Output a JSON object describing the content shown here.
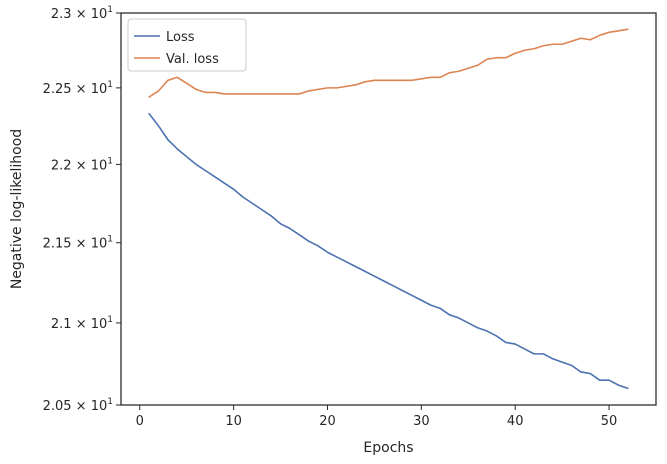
{
  "chart_data": {
    "type": "line",
    "xlabel": "Epochs",
    "ylabel": "Negative log-likelihood",
    "xlim": [
      -2,
      55
    ],
    "ylim": [
      20.5,
      23.0
    ],
    "yscale": "log",
    "grid": false,
    "legend_position": "top-left",
    "x_ticks": [
      0,
      10,
      20,
      30,
      40,
      50
    ],
    "x_tick_labels": [
      "0",
      "10",
      "20",
      "30",
      "40",
      "50"
    ],
    "y_ticks": [
      20.5,
      21.0,
      21.5,
      22.0,
      22.5,
      23.0
    ],
    "y_tick_mantissas": [
      "2.05",
      "2.1",
      "2.15",
      "2.2",
      "2.25",
      "2.3"
    ],
    "y_tick_times": "×",
    "y_tick_base": "10",
    "y_tick_exponent": "1",
    "x": [
      1,
      2,
      3,
      4,
      5,
      6,
      7,
      8,
      9,
      10,
      11,
      12,
      13,
      14,
      15,
      16,
      17,
      18,
      19,
      20,
      21,
      22,
      23,
      24,
      25,
      26,
      27,
      28,
      29,
      30,
      31,
      32,
      33,
      34,
      35,
      36,
      37,
      38,
      39,
      40,
      41,
      42,
      43,
      44,
      45,
      46,
      47,
      48,
      49,
      50,
      51,
      52
    ],
    "series": [
      {
        "name": "Loss",
        "color": "#4c72b0",
        "values": [
          22.33,
          22.25,
          22.16,
          22.1,
          22.05,
          22.0,
          21.96,
          21.92,
          21.88,
          21.84,
          21.79,
          21.75,
          21.71,
          21.67,
          21.62,
          21.59,
          21.55,
          21.51,
          21.48,
          21.44,
          21.41,
          21.38,
          21.35,
          21.32,
          21.29,
          21.26,
          21.23,
          21.2,
          21.17,
          21.14,
          21.11,
          21.09,
          21.05,
          21.03,
          21.0,
          20.97,
          20.95,
          20.92,
          20.88,
          20.87,
          20.84,
          20.81,
          20.81,
          20.78,
          20.76,
          20.74,
          20.7,
          20.69,
          20.65,
          20.65,
          20.62,
          20.6
        ]
      },
      {
        "name": "Val. loss",
        "color": "#dd8452",
        "values": [
          22.44,
          22.48,
          22.55,
          22.57,
          22.53,
          22.49,
          22.47,
          22.47,
          22.46,
          22.46,
          22.46,
          22.46,
          22.46,
          22.46,
          22.46,
          22.46,
          22.46,
          22.48,
          22.49,
          22.5,
          22.5,
          22.51,
          22.52,
          22.54,
          22.55,
          22.55,
          22.55,
          22.55,
          22.55,
          22.56,
          22.57,
          22.57,
          22.6,
          22.61,
          22.63,
          22.65,
          22.69,
          22.7,
          22.7,
          22.73,
          22.75,
          22.76,
          22.78,
          22.79,
          22.79,
          22.81,
          22.83,
          22.82,
          22.85,
          22.87,
          22.88,
          22.89
        ]
      }
    ]
  }
}
